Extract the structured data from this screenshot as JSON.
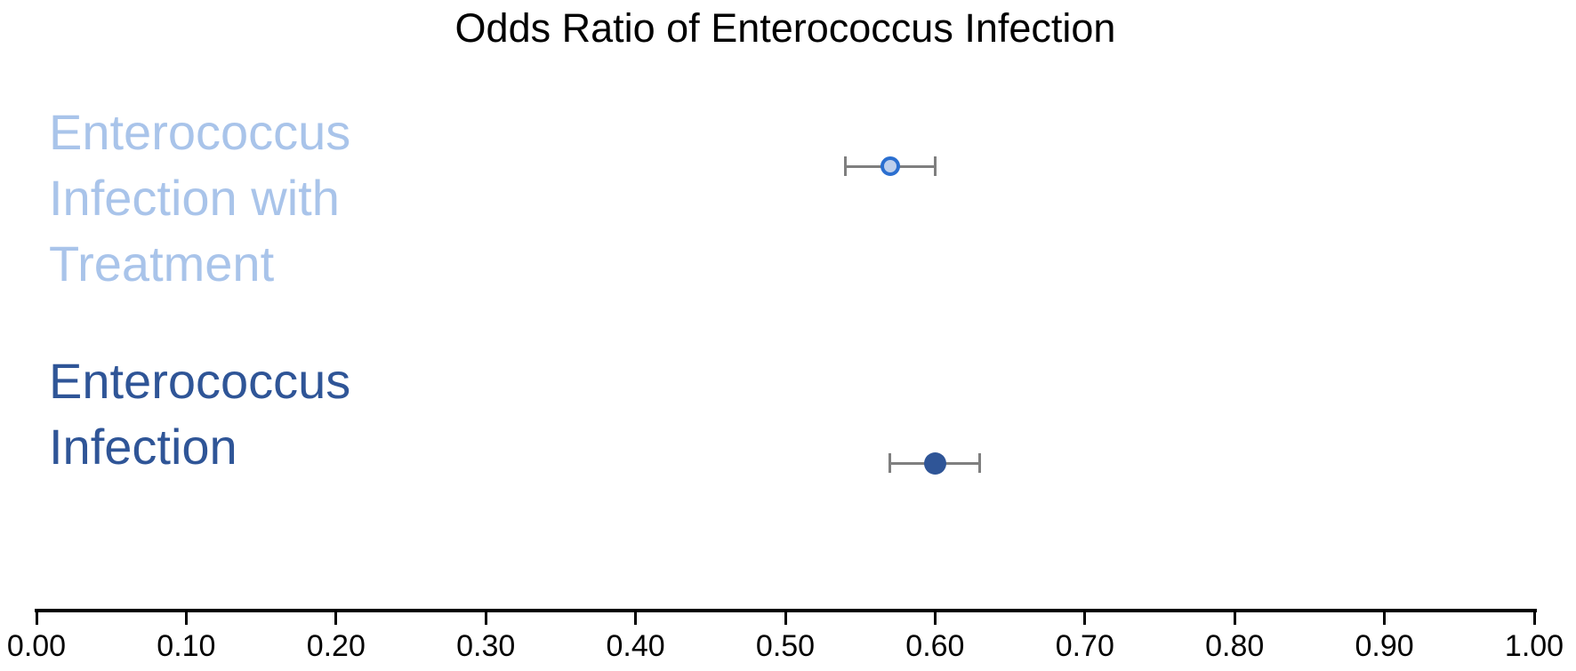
{
  "chart_data": {
    "type": "scatter",
    "subtype": "horizontal-dot-plot-with-error-bars",
    "title": "Odds Ratio of Enterococcus Infection",
    "xlabel": "",
    "ylabel": "",
    "xlim": [
      0.0,
      1.0
    ],
    "x_tick_values": [
      0.0,
      0.1,
      0.2,
      0.3,
      0.4,
      0.5,
      0.6,
      0.7,
      0.8,
      0.9,
      1.0
    ],
    "x_tick_labels": [
      "0.00",
      "0.10",
      "0.20",
      "0.30",
      "0.40",
      "0.50",
      "0.60",
      "0.70",
      "0.80",
      "0.90",
      "1.00"
    ],
    "grid": "off",
    "legend": "none",
    "series": [
      {
        "name": "Enterococcus Infection with Treatment",
        "label_lines": [
          "Enterococcus",
          "Infection with",
          "Treatment"
        ],
        "odds_ratio": 0.57,
        "ci_low": 0.54,
        "ci_high": 0.6,
        "marker_fill": "#BECFEC",
        "marker_border": "#2B6FD0",
        "label_color": "#A9C4EA"
      },
      {
        "name": "Enterococcus Infection",
        "label_lines": [
          "Enterococcus",
          "Infection"
        ],
        "odds_ratio": 0.6,
        "ci_low": 0.57,
        "ci_high": 0.63,
        "marker_fill": "#2F5597",
        "marker_border": "#2F5597",
        "label_color": "#2F5597"
      }
    ],
    "error_bar_color": "#7F7F7F",
    "axis_color": "#000000",
    "title_color": "#000000",
    "tick_label_color": "#000000"
  }
}
